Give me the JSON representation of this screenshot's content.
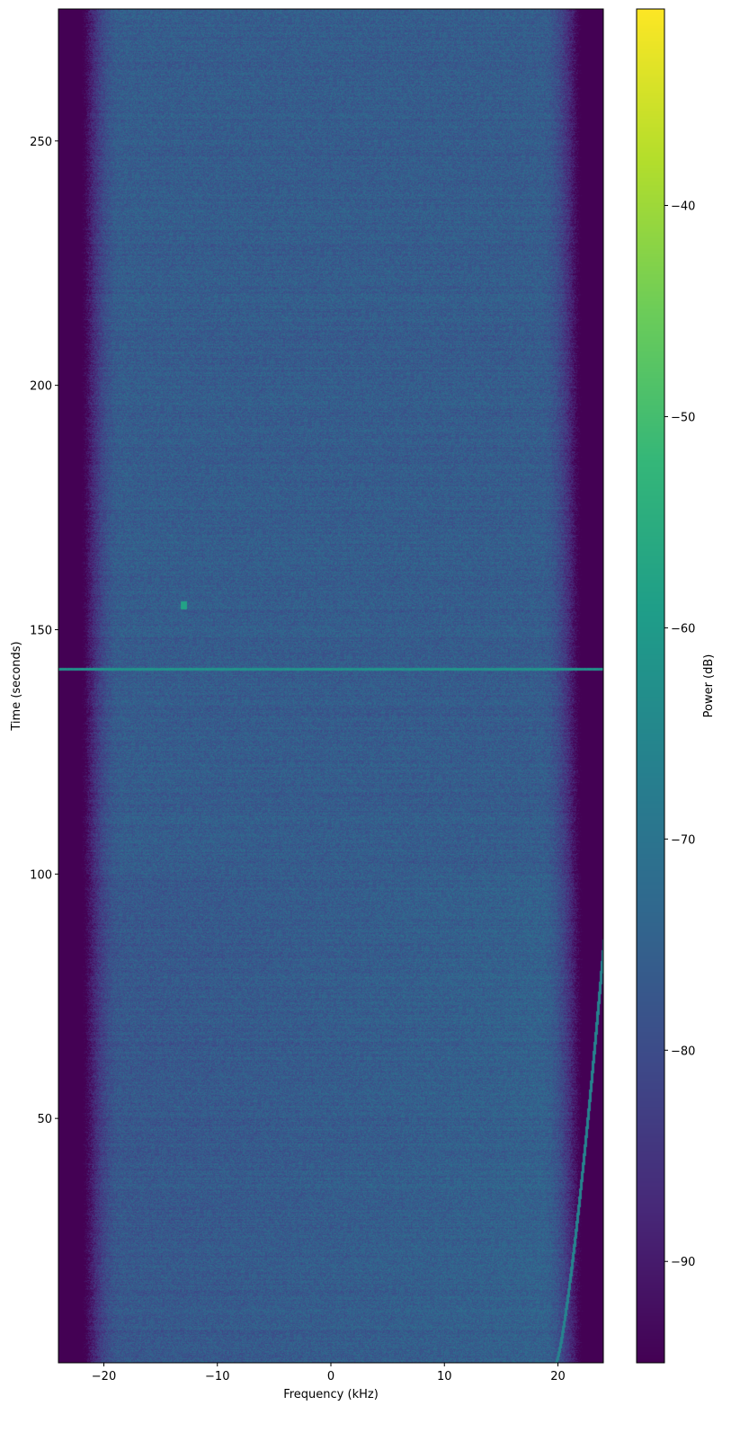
{
  "chart_data": {
    "type": "heatmap",
    "title": "",
    "xlabel": "Frequency (kHz)",
    "ylabel": "Time (seconds)",
    "colorbar_label": "Power (dB)",
    "colormap": "viridis",
    "xlim": [
      -24,
      24
    ],
    "ylim": [
      0,
      277
    ],
    "clim": [
      -94.8,
      -30.7
    ],
    "xticks": [
      -20,
      -10,
      0,
      10,
      20
    ],
    "xtick_labels": [
      "−20",
      "−10",
      "0",
      "10",
      "20"
    ],
    "yticks": [
      50,
      100,
      150,
      200,
      250
    ],
    "ytick_labels": [
      "50",
      "100",
      "150",
      "200",
      "250"
    ],
    "cticks": [
      -90,
      -80,
      -70,
      -60,
      -50,
      -40
    ],
    "ctick_labels": [
      "−90",
      "−80",
      "−70",
      "−60",
      "−50",
      "−40"
    ],
    "grid": false
  }
}
